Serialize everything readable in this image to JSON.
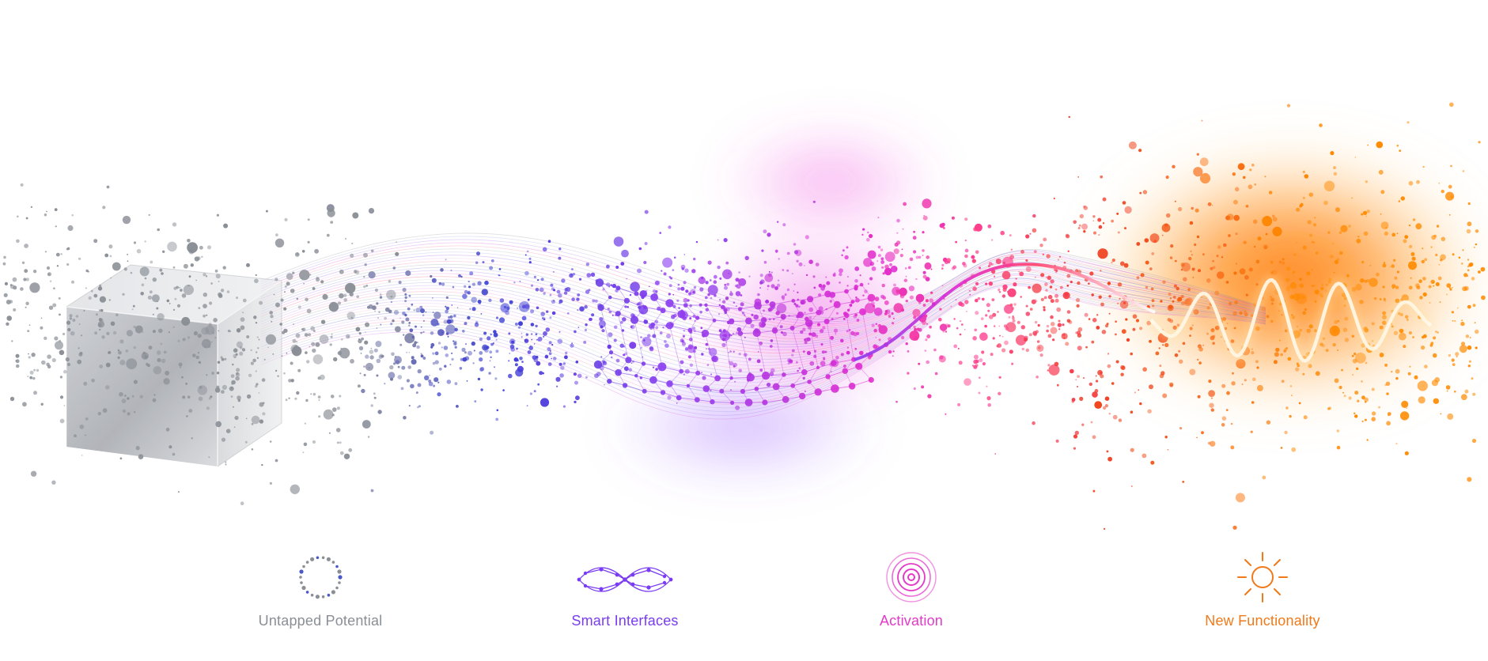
{
  "illustration": {
    "name": "data-transformation-flow",
    "colors": {
      "gray": "#8a8f96",
      "blue": "#3b3fd6",
      "violet": "#8a3cf0",
      "magenta": "#e02bd0",
      "pink": "#ff3f8c",
      "red": "#ef3b1f",
      "orange": "#ff8a00"
    },
    "elements": [
      "glass-cube",
      "particle-network",
      "sine-wave",
      "orange-glow"
    ]
  },
  "stages": [
    {
      "label": "Untapped Potential",
      "icon": "dotted-circle-icon",
      "color": "#8a8f96"
    },
    {
      "label": "Smart Interfaces",
      "icon": "network-wave-icon",
      "color": "#7a3cf0"
    },
    {
      "label": "Activation",
      "icon": "concentric-circles-icon",
      "color": "#e43ac8"
    },
    {
      "label": "New Functionality",
      "icon": "sun-icon",
      "color": "#f07a1a"
    }
  ]
}
